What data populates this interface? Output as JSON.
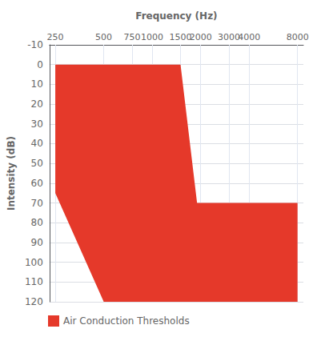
{
  "chart_data": {
    "type": "area",
    "xlabel": "Frequency (Hz)",
    "ylabel": "Intensity (dB)",
    "series": [
      {
        "name": "Air Conduction Thresholds",
        "color": "#E5392A",
        "x": [
          250,
          1500,
          1900,
          8000,
          8000,
          500,
          250
        ],
        "values": [
          0,
          0,
          70,
          70,
          120,
          120,
          65
        ]
      }
    ],
    "xlim": [
      230,
      8700
    ],
    "xticks": [
      250,
      500,
      750,
      1000,
      1500,
      2000,
      3000,
      4000,
      8000
    ],
    "ylim": [
      120,
      -10
    ],
    "yticks": [
      -10,
      0,
      10,
      20,
      30,
      40,
      50,
      60,
      70,
      80,
      90,
      100,
      110,
      120
    ],
    "log": "x",
    "grid": true,
    "legend": "bottom left"
  }
}
